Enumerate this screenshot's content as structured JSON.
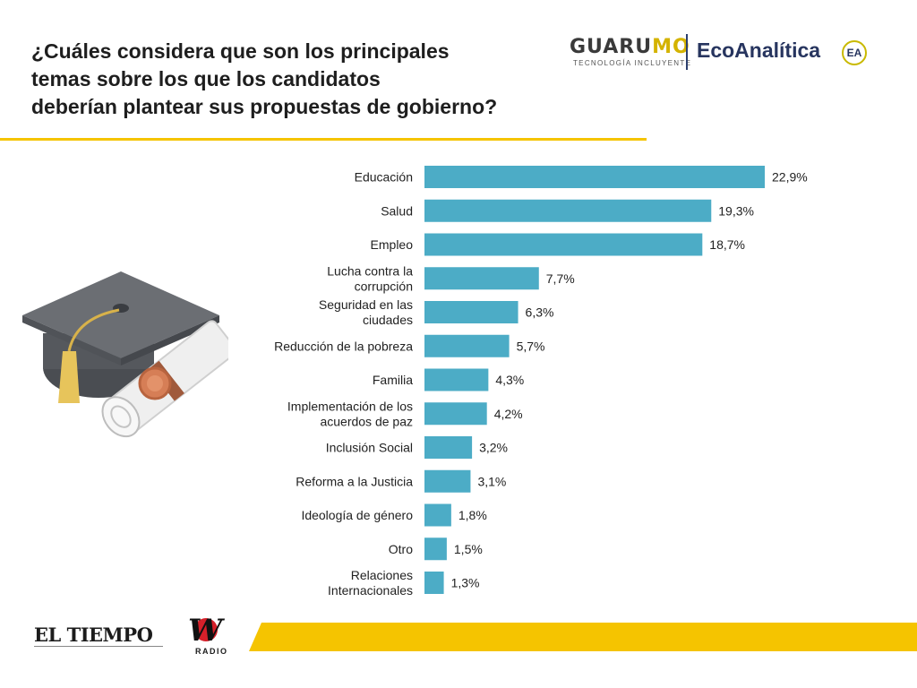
{
  "question": {
    "lines": [
      "¿Cuáles considera que son los principales",
      "temas sobre los que los candidatos",
      "deberían plantear sus propuestas de gobierno?"
    ]
  },
  "logos": {
    "guarumo_a": "GUARU",
    "guarumo_b": "MO",
    "guarumo_tagline": "TECNOLOGÍA INCLUYENTE",
    "ecoanalitica": "EcoAnalítica",
    "ea_mark": "EA",
    "eltiempo": "EL TIEMPO",
    "wradio_mark": "W",
    "wradio_sub": "RADIO"
  },
  "colors": {
    "bar": "#4cacc6",
    "accent": "#f5c400",
    "text": "#1e1e1e"
  },
  "chart_data": {
    "type": "bar",
    "orientation": "horizontal",
    "categories": [
      [
        "Educación"
      ],
      [
        "Salud"
      ],
      [
        "Empleo"
      ],
      [
        "Lucha contra la",
        "corrupción"
      ],
      [
        "Seguridad en las",
        "ciudades"
      ],
      [
        "Reducción de la pobreza"
      ],
      [
        "Familia"
      ],
      [
        "Implementación de los",
        "acuerdos de paz"
      ],
      [
        "Inclusión Social"
      ],
      [
        "Reforma a la Justicia"
      ],
      [
        "Ideología de género"
      ],
      [
        "Otro"
      ],
      [
        "Relaciones",
        "Internacionales"
      ]
    ],
    "values": [
      22.9,
      19.3,
      18.7,
      7.7,
      6.3,
      5.7,
      4.3,
      4.2,
      3.2,
      3.1,
      1.8,
      1.5,
      1.3
    ],
    "value_labels": [
      "22,9%",
      "19,3%",
      "18,7%",
      "7,7%",
      "6,3%",
      "5,7%",
      "4,3%",
      "4,2%",
      "3,2%",
      "3,1%",
      "1,8%",
      "1,5%",
      "1,3%"
    ],
    "unit": "%",
    "xlim": [
      0,
      22.9
    ],
    "grid": false,
    "legend": "none"
  }
}
